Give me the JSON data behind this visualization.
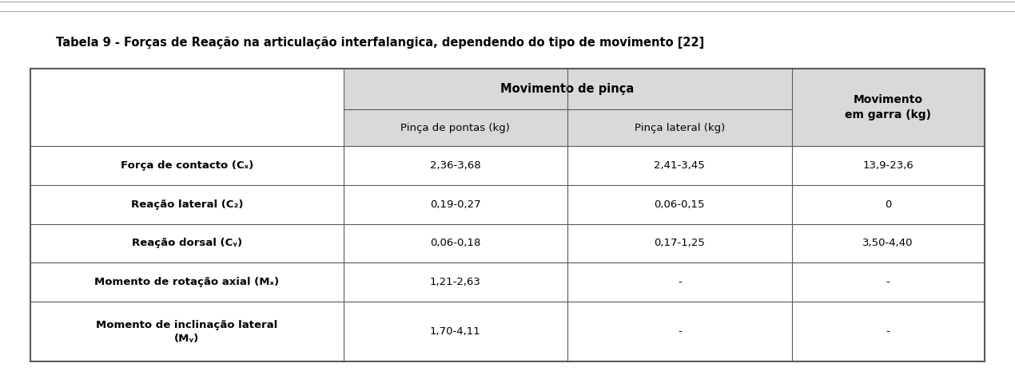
{
  "title": "Tabela 9 - Forças de Reação na articulação interfalangica, dependendo do tipo de movimento [22]",
  "title_fontsize": 10.5,
  "header1_text": "Movimento de pinça",
  "header2_col1": "Pinça de pontas (kg)",
  "header2_col2": "Pinça lateral (kg)",
  "header_col3": "Movimento\nem garra (kg)",
  "row_labels": [
    "Força de contacto (Cₓ)",
    "Reação lateral (C₂)",
    "Reação dorsal (Cᵧ)",
    "Momento de rotação axial (Mₓ)",
    "Momento de inclinação lateral\n(Mᵧ)"
  ],
  "row_data": [
    [
      "2,36-3,68",
      "2,41-3,45",
      "13,9-23,6"
    ],
    [
      "0,19-0,27",
      "0,06-0,15",
      "0"
    ],
    [
      "0,06-0,18",
      "0,17-1,25",
      "3,50-4,40"
    ],
    [
      "1,21-2,63",
      "-",
      "-"
    ],
    [
      "1,70-4,11",
      "-",
      "-"
    ]
  ],
  "bg_header": "#d9d9d9",
  "bg_white": "#ffffff",
  "bg_data": "#ffffff",
  "text_color": "#000000",
  "border_color": "#5a5a5a",
  "top_line_color": "#aaaaaa",
  "font_family": "DejaVu Sans"
}
